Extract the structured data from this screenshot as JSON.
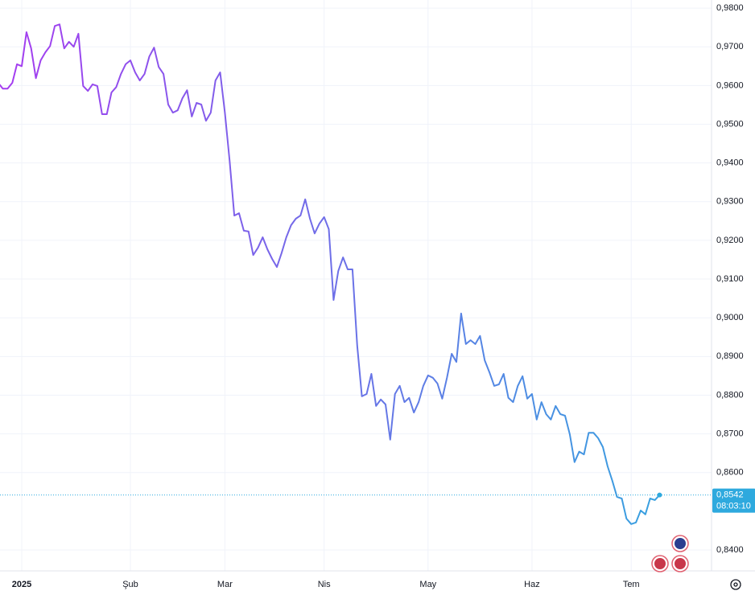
{
  "chart_data": {
    "type": "line",
    "x": [
      -5,
      -4,
      -3,
      -2,
      -1,
      0,
      1,
      2,
      3,
      4,
      5,
      6,
      7,
      8,
      9,
      10,
      11,
      12,
      13,
      14,
      15,
      16,
      17,
      18,
      19,
      20,
      21,
      22,
      23,
      24,
      25,
      26,
      27,
      28,
      29,
      30,
      31,
      32,
      33,
      34,
      35,
      36,
      37,
      38,
      39,
      40,
      41,
      42,
      43,
      44,
      45,
      46,
      47,
      48,
      49,
      50,
      51,
      52,
      53,
      54,
      55,
      56,
      57,
      58,
      59,
      60,
      61,
      62,
      63,
      64,
      65,
      66,
      67,
      68,
      69,
      70,
      71,
      72,
      73,
      74,
      75,
      76,
      77,
      78,
      79,
      80,
      81,
      82,
      83,
      84,
      85,
      86,
      87,
      88,
      89,
      90,
      91,
      92,
      93,
      94,
      95,
      96,
      97,
      98,
      99,
      100,
      101,
      102,
      103,
      104,
      105,
      106,
      107,
      108,
      109,
      110,
      111,
      112,
      113,
      114,
      115,
      116,
      117,
      118,
      119,
      120,
      121,
      122,
      123,
      124,
      125,
      126,
      127,
      128,
      129,
      130,
      131,
      132,
      133,
      134,
      135
    ],
    "values": [
      0.9607,
      0.9592,
      0.9592,
      0.9607,
      0.9655,
      0.965,
      0.9738,
      0.9696,
      0.9619,
      0.9665,
      0.9686,
      0.9702,
      0.9754,
      0.9758,
      0.9696,
      0.9713,
      0.97,
      0.9734,
      0.9599,
      0.9586,
      0.9603,
      0.9599,
      0.9526,
      0.9526,
      0.9582,
      0.9596,
      0.963,
      0.9655,
      0.9665,
      0.9634,
      0.9613,
      0.963,
      0.9675,
      0.9698,
      0.9648,
      0.963,
      0.9551,
      0.953,
      0.9536,
      0.9567,
      0.9588,
      0.952,
      0.9555,
      0.9551,
      0.9509,
      0.953,
      0.9613,
      0.9634,
      0.953,
      0.9405,
      0.9264,
      0.927,
      0.9225,
      0.9223,
      0.9162,
      0.9181,
      0.9208,
      0.9177,
      0.9152,
      0.9131,
      0.9167,
      0.9208,
      0.9239,
      0.9256,
      0.9264,
      0.9306,
      0.9256,
      0.9218,
      0.9243,
      0.926,
      0.9229,
      0.9046,
      0.9121,
      0.9156,
      0.9125,
      0.9125,
      0.8928,
      0.8797,
      0.8803,
      0.8855,
      0.8772,
      0.8789,
      0.8776,
      0.8685,
      0.8803,
      0.8824,
      0.8782,
      0.8793,
      0.8755,
      0.8782,
      0.8824,
      0.8851,
      0.8845,
      0.883,
      0.8791,
      0.8845,
      0.8907,
      0.8886,
      0.9011,
      0.8932,
      0.8942,
      0.8932,
      0.8953,
      0.889,
      0.8859,
      0.8824,
      0.8828,
      0.8855,
      0.8793,
      0.8782,
      0.8824,
      0.8849,
      0.8791,
      0.8803,
      0.8737,
      0.8782,
      0.8751,
      0.8737,
      0.8772,
      0.8751,
      0.8747,
      0.8699,
      0.8627,
      0.8654,
      0.8647,
      0.8703,
      0.8703,
      0.8689,
      0.8666,
      0.8616,
      0.8579,
      0.8537,
      0.8533,
      0.8481,
      0.8467,
      0.8471,
      0.8502,
      0.8492,
      0.8533,
      0.8529,
      0.8542
    ],
    "gradient": [
      "#a63cf0",
      "#2ea9de"
    ],
    "xlim": [
      -4.6,
      146
    ],
    "ylim": [
      0.8346,
      0.9821
    ],
    "xticks": [
      {
        "value": 0,
        "label": "2025"
      },
      {
        "value": 23,
        "label": "Şub"
      },
      {
        "value": 43,
        "label": "Mar"
      },
      {
        "value": 64,
        "label": "Nis"
      },
      {
        "value": 86,
        "label": "May"
      },
      {
        "value": 108,
        "label": "Haz"
      },
      {
        "value": 129,
        "label": "Tem"
      }
    ],
    "yticks": [
      {
        "value": 0.84,
        "label": "0,8400"
      },
      {
        "value": 0.86,
        "label": "0,8600"
      },
      {
        "value": 0.87,
        "label": "0,8700"
      },
      {
        "value": 0.88,
        "label": "0,8800"
      },
      {
        "value": 0.89,
        "label": "0,8900"
      },
      {
        "value": 0.9,
        "label": "0,9000"
      },
      {
        "value": 0.91,
        "label": "0,9100"
      },
      {
        "value": 0.92,
        "label": "0,9200"
      },
      {
        "value": 0.93,
        "label": "0,9300"
      },
      {
        "value": 0.94,
        "label": "0,9400"
      },
      {
        "value": 0.95,
        "label": "0,9500"
      },
      {
        "value": 0.96,
        "label": "0,9600"
      },
      {
        "value": 0.97,
        "label": "0,9700"
      },
      {
        "value": 0.98,
        "label": "0,9800"
      }
    ],
    "grid": true,
    "last_value_label": "0,8542",
    "countdown": "08:03:10"
  }
}
